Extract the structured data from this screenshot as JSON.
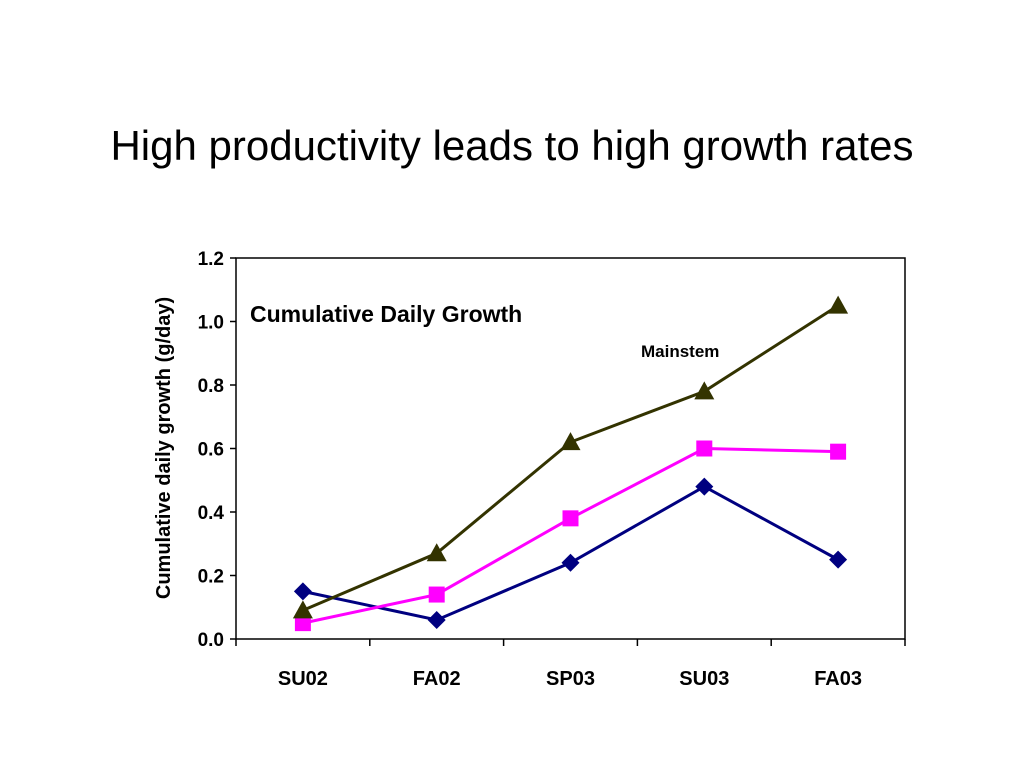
{
  "slide": {
    "title": "High productivity leads to high growth rates"
  },
  "chart_data": {
    "type": "line",
    "title": "Cumulative Daily Growth",
    "ylabel": "Cumulative daily growth (g/day)",
    "xlabel": "",
    "categories": [
      "SU02",
      "FA02",
      "SP03",
      "SU03",
      "FA03"
    ],
    "ylim": [
      0,
      1.2
    ],
    "yticks": [
      "0.0",
      "0.2",
      "0.4",
      "0.6",
      "0.8",
      "1.0",
      "1.2"
    ],
    "grid": false,
    "series": [
      {
        "marker": "diamond",
        "color": "#000080",
        "values": [
          0.15,
          0.06,
          0.24,
          0.48,
          0.25
        ]
      },
      {
        "marker": "square",
        "color": "#FF00FF",
        "values": [
          0.05,
          0.14,
          0.38,
          0.6,
          0.59
        ]
      },
      {
        "name": "Mainstem",
        "marker": "triangle",
        "color": "#333300",
        "values": [
          0.09,
          0.27,
          0.62,
          0.78,
          1.05
        ]
      }
    ]
  }
}
